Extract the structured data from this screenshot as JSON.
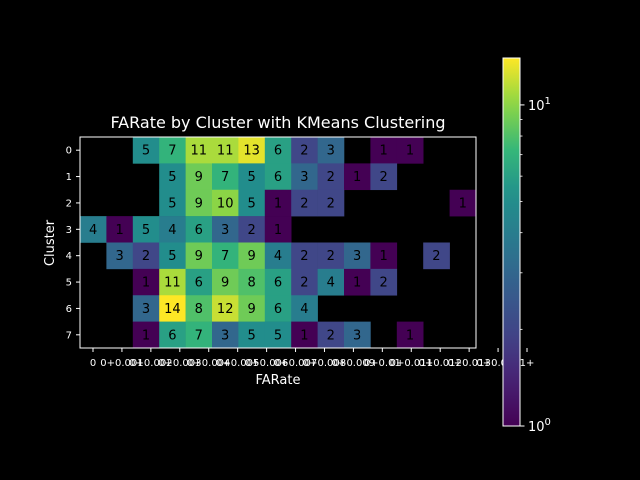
{
  "chart_data": {
    "type": "heatmap",
    "title": "FARate by Cluster with KMeans Clustering",
    "xlabel": "FARate",
    "ylabel": "Cluster",
    "x_tick_labels": [
      "0",
      "0+0.001",
      "0+0.002",
      "0+0.003",
      "0+0.004",
      "0+0.005",
      "0+0.006",
      "0+0.007",
      "0+0.008",
      "0+0.009",
      "0+0.01",
      "0+0.011",
      "0+0.012",
      "0+0.013",
      "0+0.014",
      "1+"
    ],
    "y_tick_labels": [
      "0",
      "1",
      "2",
      "3",
      "4",
      "5",
      "6",
      "7"
    ],
    "x_tick_labels_printed": [
      "0",
      "0+0.001",
      "0+0.002",
      "0+0.003",
      "0+0.004",
      "0+0.005",
      "0+0.006",
      "0+0.007",
      "0+0.008",
      "0+0.009",
      "0+0.01",
      "0+0.011",
      "0+0.012",
      "0+0.013",
      "0+0.014",
      "1+"
    ],
    "matrix": [
      [
        null,
        null,
        5,
        7,
        11,
        11,
        13,
        6,
        2,
        3,
        null,
        1,
        1,
        null,
        null
      ],
      [
        null,
        null,
        null,
        5,
        9,
        7,
        5,
        6,
        3,
        2,
        1,
        2,
        null,
        null,
        null
      ],
      [
        null,
        null,
        null,
        5,
        9,
        10,
        5,
        1,
        2,
        2,
        null,
        null,
        null,
        null,
        1
      ],
      [
        4,
        1,
        5,
        4,
        6,
        3,
        2,
        1,
        null,
        null,
        null,
        null,
        null,
        null,
        null
      ],
      [
        null,
        3,
        2,
        5,
        9,
        7,
        9,
        4,
        2,
        2,
        3,
        1,
        null,
        2,
        null
      ],
      [
        null,
        null,
        1,
        11,
        6,
        9,
        8,
        6,
        2,
        4,
        1,
        2,
        null,
        null,
        null
      ],
      [
        null,
        null,
        3,
        14,
        8,
        12,
        9,
        6,
        4,
        null,
        null,
        null,
        null,
        null,
        null
      ],
      [
        null,
        null,
        1,
        6,
        7,
        3,
        5,
        5,
        1,
        2,
        3,
        null,
        1,
        null,
        null
      ]
    ],
    "color_scale": "log",
    "colormap": "viridis",
    "vmin": 1,
    "vmax": 14,
    "colorbar_ticks": [
      {
        "value": 1,
        "label": "10",
        "exp": "0"
      },
      {
        "value": 10,
        "label": "10",
        "exp": "1"
      }
    ],
    "grid": false,
    "background": "#000000",
    "text_color": "#ffffff"
  }
}
